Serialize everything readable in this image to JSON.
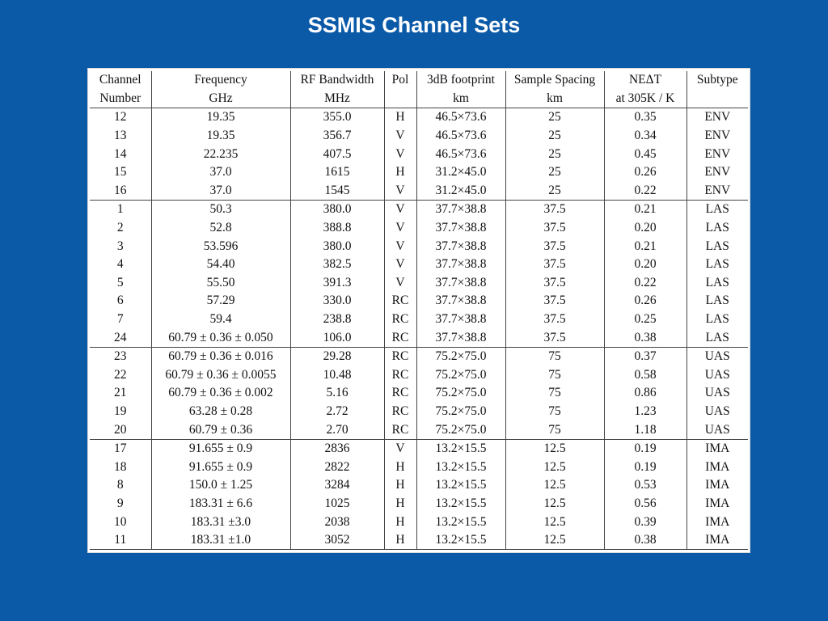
{
  "slide": {
    "title": "SSMIS Channel Sets"
  },
  "table": {
    "header_line1": [
      "Channel",
      "Frequency",
      "RF Bandwidth",
      "Pol",
      "3dB footprint",
      "Sample Spacing",
      "NEΔT",
      "Subtype"
    ],
    "header_line2": [
      "Number",
      "GHz",
      "MHz",
      "",
      "km",
      "km",
      "at 305K / K",
      ""
    ],
    "groups": [
      {
        "subtype": "ENV",
        "rows": [
          [
            "12",
            "19.35",
            "355.0",
            "H",
            "46.5×73.6",
            "25",
            "0.35",
            "ENV"
          ],
          [
            "13",
            "19.35",
            "356.7",
            "V",
            "46.5×73.6",
            "25",
            "0.34",
            "ENV"
          ],
          [
            "14",
            "22.235",
            "407.5",
            "V",
            "46.5×73.6",
            "25",
            "0.45",
            "ENV"
          ],
          [
            "15",
            "37.0",
            "1615",
            "H",
            "31.2×45.0",
            "25",
            "0.26",
            "ENV"
          ],
          [
            "16",
            "37.0",
            "1545",
            "V",
            "31.2×45.0",
            "25",
            "0.22",
            "ENV"
          ]
        ]
      },
      {
        "subtype": "LAS",
        "rows": [
          [
            "1",
            "50.3",
            "380.0",
            "V",
            "37.7×38.8",
            "37.5",
            "0.21",
            "LAS"
          ],
          [
            "2",
            "52.8",
            "388.8",
            "V",
            "37.7×38.8",
            "37.5",
            "0.20",
            "LAS"
          ],
          [
            "3",
            "53.596",
            "380.0",
            "V",
            "37.7×38.8",
            "37.5",
            "0.21",
            "LAS"
          ],
          [
            "4",
            "54.40",
            "382.5",
            "V",
            "37.7×38.8",
            "37.5",
            "0.20",
            "LAS"
          ],
          [
            "5",
            "55.50",
            "391.3",
            "V",
            "37.7×38.8",
            "37.5",
            "0.22",
            "LAS"
          ],
          [
            "6",
            "57.29",
            "330.0",
            "RC",
            "37.7×38.8",
            "37.5",
            "0.26",
            "LAS"
          ],
          [
            "7",
            "59.4",
            "238.8",
            "RC",
            "37.7×38.8",
            "37.5",
            "0.25",
            "LAS"
          ],
          [
            "24",
            "60.79 ± 0.36 ± 0.050",
            "106.0",
            "RC",
            "37.7×38.8",
            "37.5",
            "0.38",
            "LAS"
          ]
        ]
      },
      {
        "subtype": "UAS",
        "rows": [
          [
            "23",
            "60.79 ± 0.36 ± 0.016",
            "29.28",
            "RC",
            "75.2×75.0",
            "75",
            "0.37",
            "UAS"
          ],
          [
            "22",
            "60.79 ± 0.36 ± 0.0055",
            "10.48",
            "RC",
            "75.2×75.0",
            "75",
            "0.58",
            "UAS"
          ],
          [
            "21",
            "60.79 ± 0.36 ± 0.002",
            "5.16",
            "RC",
            "75.2×75.0",
            "75",
            "0.86",
            "UAS"
          ],
          [
            "19",
            "63.28 ± 0.28",
            "2.72",
            "RC",
            "75.2×75.0",
            "75",
            "1.23",
            "UAS"
          ],
          [
            "20",
            "60.79 ± 0.36",
            "2.70",
            "RC",
            "75.2×75.0",
            "75",
            "1.18",
            "UAS"
          ]
        ]
      },
      {
        "subtype": "IMA",
        "rows": [
          [
            "17",
            "91.655 ± 0.9",
            "2836",
            "V",
            "13.2×15.5",
            "12.5",
            "0.19",
            "IMA"
          ],
          [
            "18",
            "91.655 ± 0.9",
            "2822",
            "H",
            "13.2×15.5",
            "12.5",
            "0.19",
            "IMA"
          ],
          [
            "8",
            "150.0 ± 1.25",
            "3284",
            "H",
            "13.2×15.5",
            "12.5",
            "0.53",
            "IMA"
          ],
          [
            "9",
            "183.31 ± 6.6",
            "1025",
            "H",
            "13.2×15.5",
            "12.5",
            "0.56",
            "IMA"
          ],
          [
            "10",
            "183.31 ±3.0",
            "2038",
            "H",
            "13.2×15.5",
            "12.5",
            "0.39",
            "IMA"
          ],
          [
            "11",
            "183.31 ±1.0",
            "3052",
            "H",
            "13.2×15.5",
            "12.5",
            "0.38",
            "IMA"
          ]
        ]
      }
    ]
  }
}
